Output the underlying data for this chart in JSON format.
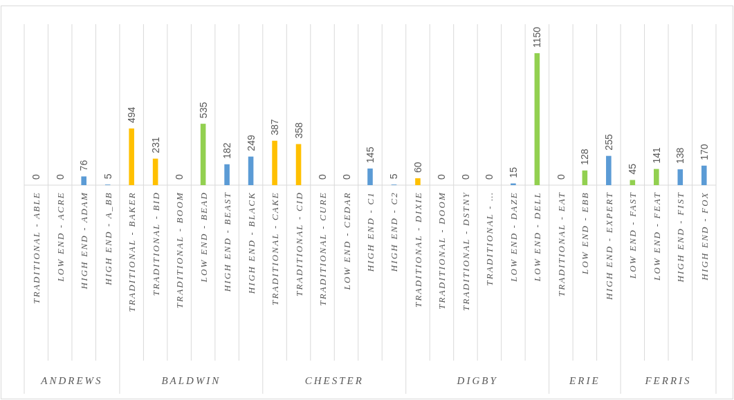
{
  "chart_data": {
    "type": "bar",
    "categories": [
      "TRADITIONAL - ABLE",
      "LOW END - ACRE",
      "HIGH END - ADAM",
      "HIGH END - A_BB",
      "TRADITIONAL - BAKER",
      "TRADITIONAL - BID",
      "TRADITIONAL - BOOM",
      "LOW END - BEAD",
      "HIGH END - BEAST",
      "HIGH END - BLACK",
      "TRADITIONAL - CAKE",
      "TRADITIONAL - CID",
      "TRADITIONAL - CURE",
      "LOW END - CEDAR",
      "HIGH END - C1",
      "HIGH END - C2",
      "TRADITIONAL - DIXIE",
      "TRADITIONAL - DOOM",
      "TRADITIONAL - DSTNY",
      "TRADITIONAL - …",
      "LOW END - DAZE",
      "LOW END - DELL",
      "TRADITIONAL - EAT",
      "LOW END - EBB",
      "HIGH END - EXPERT",
      "LOW END - FAST",
      "LOW END - FEAT",
      "HIGH END - FIST",
      "HIGH END - FOX"
    ],
    "values": [
      0,
      0,
      76,
      5,
      494,
      231,
      0,
      535,
      182,
      249,
      387,
      358,
      0,
      0,
      145,
      5,
      60,
      0,
      0,
      0,
      15,
      1150,
      0,
      128,
      255,
      45,
      141,
      138,
      170
    ],
    "colors": [
      "#ffc000",
      "#92d050",
      "#5b9bd5",
      "#5b9bd5",
      "#ffc000",
      "#ffc000",
      "#ffc000",
      "#92d050",
      "#5b9bd5",
      "#5b9bd5",
      "#ffc000",
      "#ffc000",
      "#ffc000",
      "#92d050",
      "#5b9bd5",
      "#5b9bd5",
      "#ffc000",
      "#ffc000",
      "#ffc000",
      "#ffc000",
      "#5b9bd5",
      "#92d050",
      "#ffc000",
      "#92d050",
      "#5b9bd5",
      "#92d050",
      "#92d050",
      "#5b9bd5",
      "#5b9bd5"
    ],
    "data_labels": true,
    "grid": "x",
    "annotations": [
      "ANDREWS",
      "BALDWIN",
      "CHESTER",
      "DIGBY",
      "ERIE",
      "FERRIS"
    ]
  }
}
